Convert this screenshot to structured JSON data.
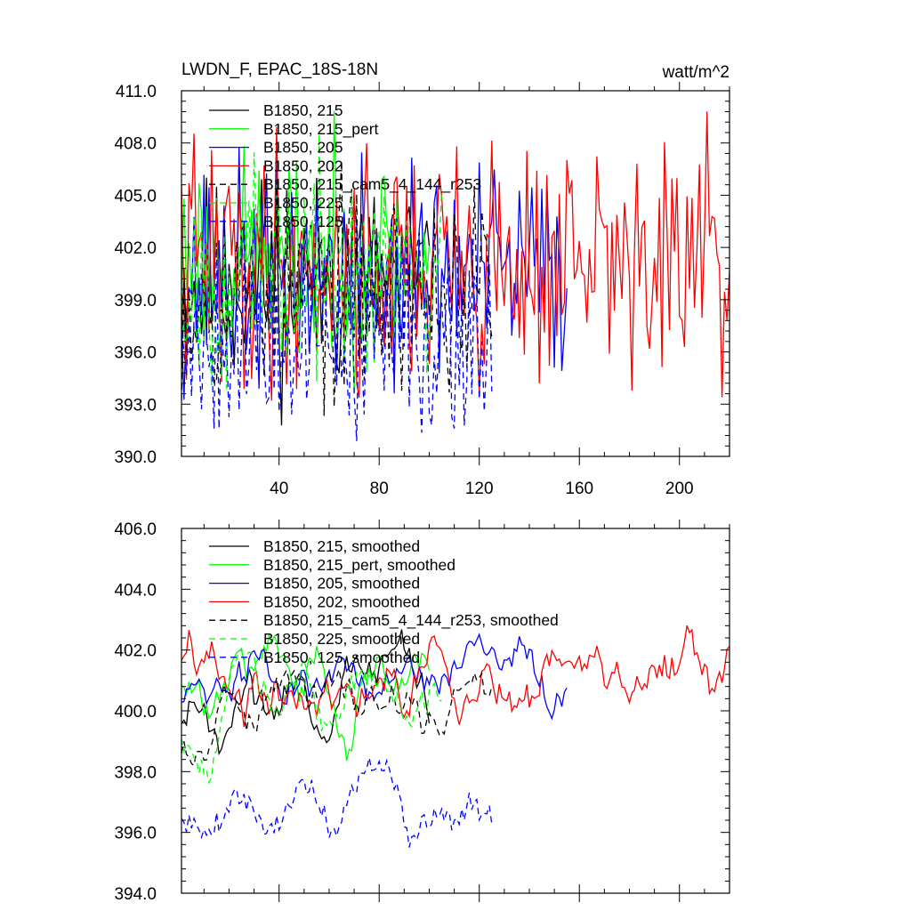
{
  "chart_data": [
    {
      "type": "line",
      "title": "LWDN_F, EPAC_18S-18N",
      "units": "watt/m^2",
      "xlim": [
        1,
        220
      ],
      "ylim": [
        390,
        411
      ],
      "x_tick_values": [
        40,
        80,
        120,
        160,
        200
      ],
      "x_tick_labels": [
        "40",
        "80",
        "120",
        "160",
        "200"
      ],
      "y_tick_values": [
        390,
        393,
        396,
        399,
        402,
        405,
        408,
        411
      ],
      "y_tick_labels": [
        "390.0",
        "393.0",
        "396.0",
        "399.0",
        "402.0",
        "405.0",
        "408.0",
        "411.0"
      ],
      "legend_position": "top-left",
      "series": [
        {
          "name": "B1850, 215",
          "color": "#000000",
          "dash": "solid",
          "n": 100,
          "base": 400.0,
          "amp": 3.0,
          "seed": 11
        },
        {
          "name": "B1850, 215_pert",
          "color": "#00ff00",
          "dash": "solid",
          "n": 100,
          "base": 401.5,
          "amp": 3.0,
          "seed": 23
        },
        {
          "name": "B1850, 205",
          "color": "#0000ff",
          "dash": "solid",
          "n": 155,
          "base": 400.5,
          "amp": 3.2,
          "seed": 37
        },
        {
          "name": "B1850, 202",
          "color": "#ff0000",
          "dash": "solid",
          "n": 220,
          "base": 401.0,
          "amp": 3.6,
          "seed": 41
        },
        {
          "name": "B1850, 215_cam5_4_144_r253",
          "color": "#000000",
          "dash": "dashed",
          "n": 125,
          "base": 399.5,
          "amp": 3.0,
          "seed": 53
        },
        {
          "name": "B1850, 225",
          "color": "#00ff00",
          "dash": "dashed",
          "n": 105,
          "base": 400.5,
          "amp": 3.0,
          "seed": 67
        },
        {
          "name": "B1850, 125",
          "color": "#0000ff",
          "dash": "dashed",
          "n": 125,
          "base": 397.0,
          "amp": 3.0,
          "seed": 79
        }
      ]
    },
    {
      "type": "line",
      "title": "",
      "units": "",
      "xlim": [
        1,
        220
      ],
      "ylim": [
        394,
        406
      ],
      "x_tick_values": [],
      "x_tick_labels": [],
      "y_tick_values": [
        394,
        396,
        398,
        400,
        402,
        404,
        406
      ],
      "y_tick_labels": [
        "394.0",
        "396.0",
        "398.0",
        "400.0",
        "402.0",
        "404.0",
        "406.0"
      ],
      "legend_position": "top-left",
      "series": [
        {
          "name": "B1850, 215, smoothed",
          "color": "#000000",
          "dash": "solid",
          "n": 100,
          "base": 400.5,
          "amp": 1.4,
          "seed": 11
        },
        {
          "name": "B1850, 215_pert, smoothed",
          "color": "#00ff00",
          "dash": "solid",
          "n": 100,
          "base": 401.3,
          "amp": 1.3,
          "seed": 23
        },
        {
          "name": "B1850, 205, smoothed",
          "color": "#0000ff",
          "dash": "solid",
          "n": 155,
          "base": 401.0,
          "amp": 1.2,
          "seed": 37
        },
        {
          "name": "B1850, 202, smoothed",
          "color": "#ff0000",
          "dash": "solid",
          "n": 220,
          "base": 401.0,
          "amp": 1.4,
          "seed": 41
        },
        {
          "name": "B1850, 215_cam5_4_144_r253, smoothed",
          "color": "#000000",
          "dash": "dashed",
          "n": 125,
          "base": 400.3,
          "amp": 1.2,
          "seed": 53
        },
        {
          "name": "B1850, 225, smoothed",
          "color": "#00ff00",
          "dash": "dashed",
          "n": 105,
          "base": 400.3,
          "amp": 1.3,
          "seed": 67
        },
        {
          "name": "B1850, 125, smoothed",
          "color": "#0000ff",
          "dash": "dashed",
          "n": 125,
          "base": 397.2,
          "amp": 1.2,
          "seed": 79
        }
      ]
    }
  ]
}
